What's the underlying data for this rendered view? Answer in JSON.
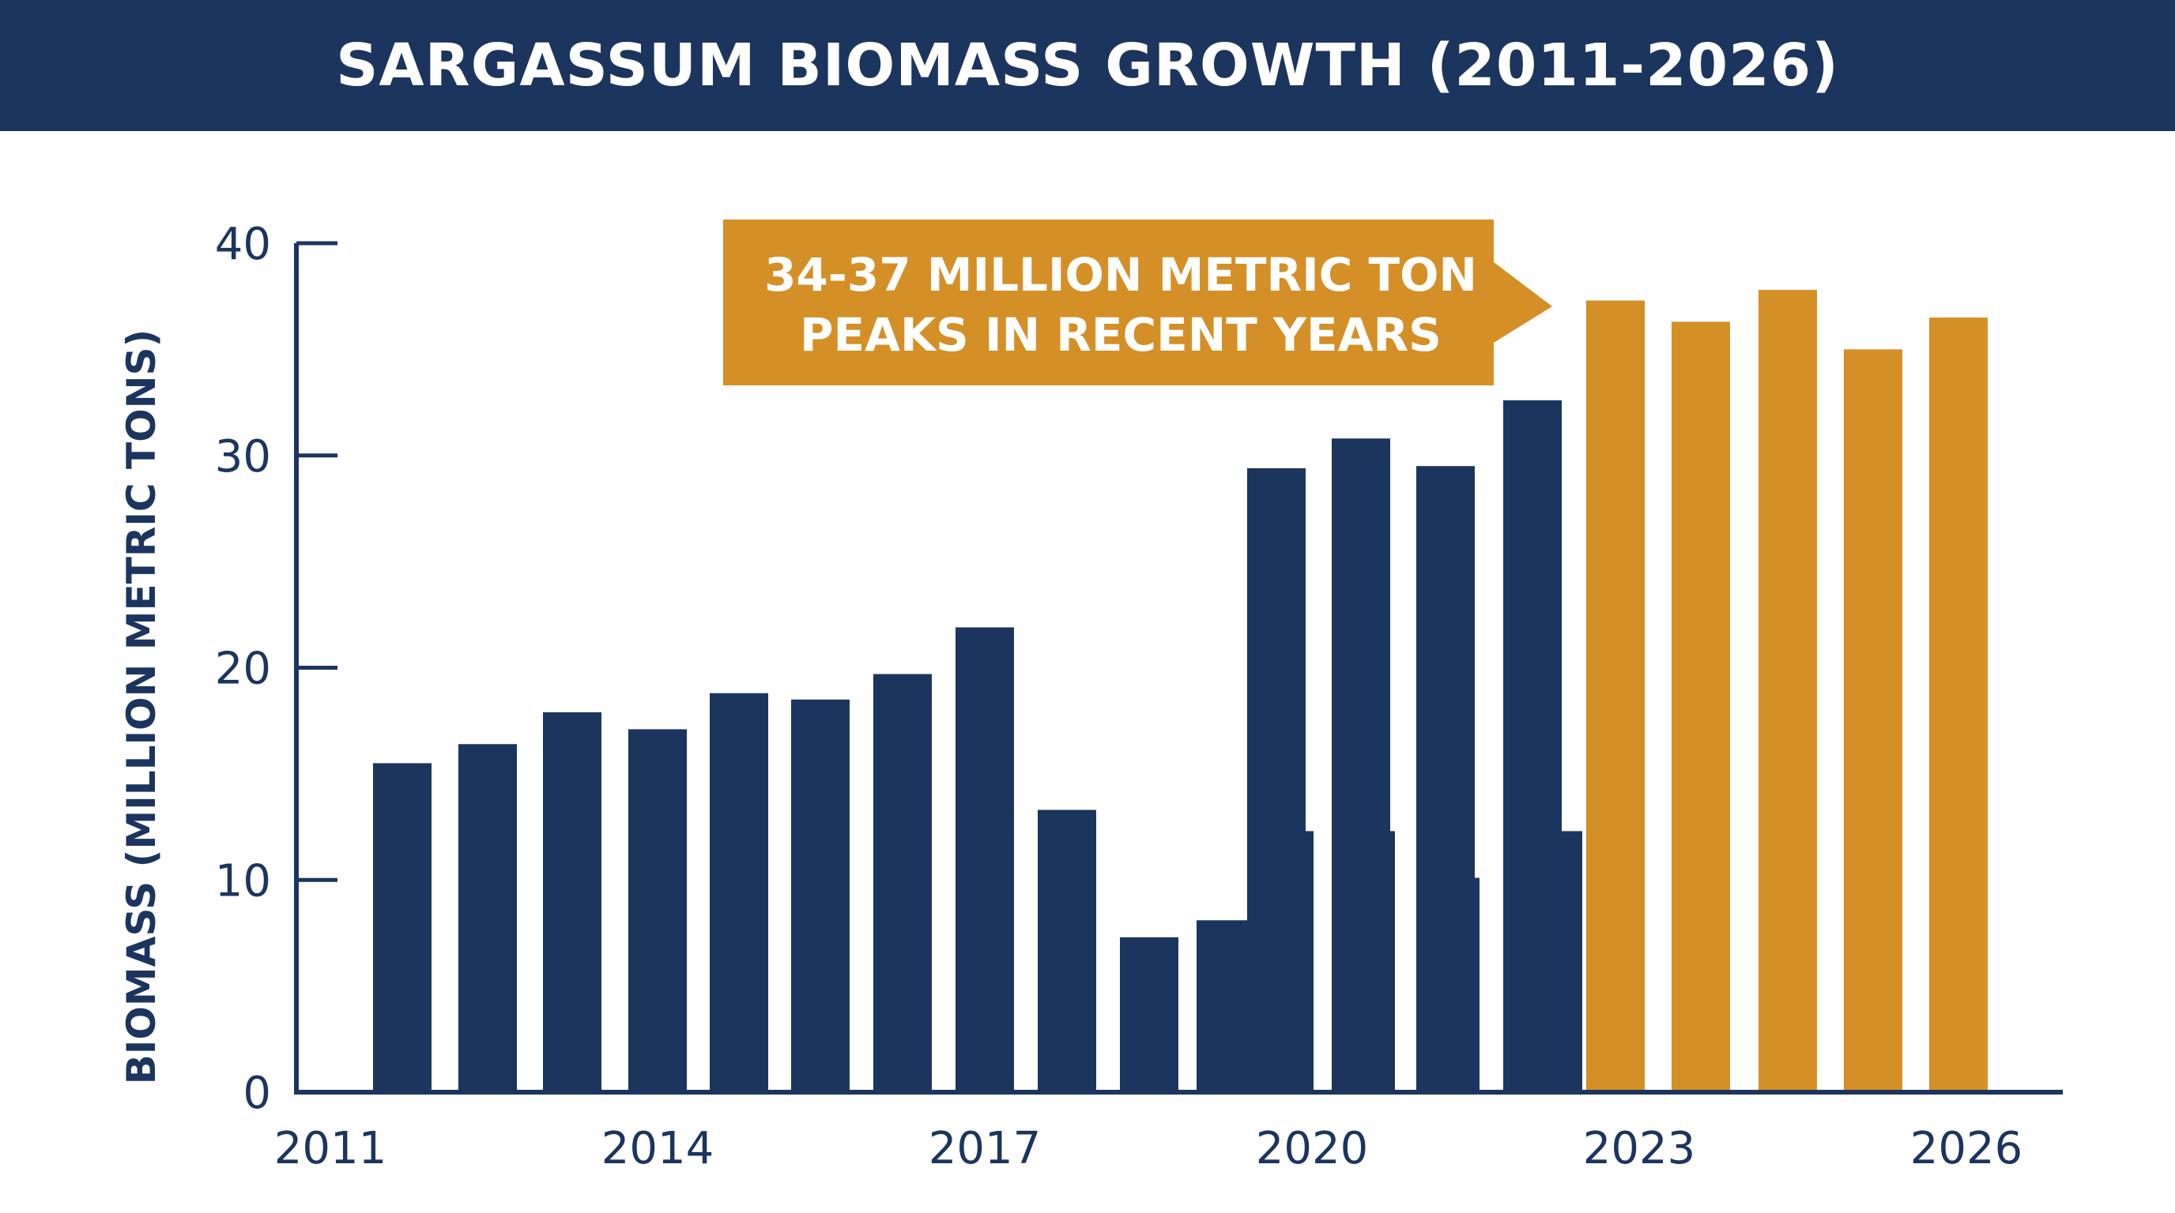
{
  "title": "SARGASSUM BIOMASS GROWTH (2011-2026)",
  "chart_data": {
    "type": "bar",
    "title": "SARGASSUM BIOMASS GROWTH (2011-2026)",
    "xlabel": "",
    "ylabel": "BIOMASS (MILLION METRIC TONS)",
    "ylim": [
      0,
      40
    ],
    "yticks": [
      "0",
      "10",
      "20",
      "30",
      "40"
    ],
    "xticks": [
      "2011",
      "2014",
      "2017",
      "2020",
      "2023",
      "2026"
    ],
    "grid": false,
    "legend": "none",
    "colors": {
      "dark": "#1b355f",
      "highlight": "#d58f27"
    },
    "bars": [
      {
        "value": 15.5,
        "group": "dark"
      },
      {
        "value": 16.4,
        "group": "dark"
      },
      {
        "value": 17.9,
        "group": "dark"
      },
      {
        "value": 17.1,
        "group": "dark"
      },
      {
        "value": 18.8,
        "group": "dark"
      },
      {
        "value": 18.5,
        "group": "dark"
      },
      {
        "value": 19.7,
        "group": "dark"
      },
      {
        "value": 21.9,
        "group": "dark"
      },
      {
        "value": 13.3,
        "group": "dark"
      },
      {
        "value": 7.3,
        "group": "dark"
      },
      {
        "value": 8.1,
        "group": "dark"
      },
      {
        "value": 29.4,
        "group": "dark"
      },
      {
        "value": 12.3,
        "group": "dark"
      },
      {
        "value": 30.8,
        "group": "dark"
      },
      {
        "value": 12.3,
        "group": "dark"
      },
      {
        "value": 29.5,
        "group": "dark"
      },
      {
        "value": 10.1,
        "group": "dark"
      },
      {
        "value": 32.6,
        "group": "dark"
      },
      {
        "value": 12.3,
        "group": "dark"
      },
      {
        "value": 37.3,
        "group": "highlight"
      },
      {
        "value": 36.3,
        "group": "highlight"
      },
      {
        "value": 37.8,
        "group": "highlight"
      },
      {
        "value": 35.0,
        "group": "highlight"
      },
      {
        "value": 36.5,
        "group": "highlight"
      }
    ],
    "annotation": {
      "lines": [
        "34-37 MILLION METRIC TON",
        "PEAKS IN RECENT YEARS"
      ],
      "color": "#d58f27"
    }
  }
}
